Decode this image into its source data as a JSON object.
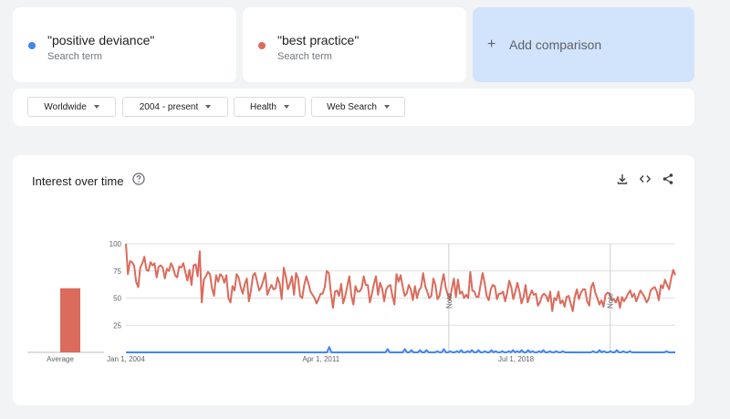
{
  "terms": [
    {
      "name": "\"positive deviance\"",
      "sub": "Search term",
      "color": "#4285f4"
    },
    {
      "name": "\"best practice\"",
      "sub": "Search term",
      "color": "#db4437"
    }
  ],
  "add_comparison": {
    "plus": "+",
    "label": "Add comparison"
  },
  "filters": [
    {
      "label": "Worldwide"
    },
    {
      "label": "2004 - present"
    },
    {
      "label": "Health"
    },
    {
      "label": "Web Search"
    }
  ],
  "chart_panel": {
    "title": "Interest over time",
    "icons": [
      "help-icon",
      "download-icon",
      "embed-icon",
      "share-icon"
    ]
  },
  "chart_data": {
    "type": "line",
    "average": {
      "label": "Average",
      "bars": [
        {
          "term": "\"positive deviance\"",
          "value": 0
        },
        {
          "term": "\"best practice\"",
          "value": 59
        }
      ]
    },
    "y_ticks": [
      "100",
      "75",
      "50",
      "25"
    ],
    "ylim": [
      0,
      100
    ],
    "x_ticks": [
      "Jan 1, 2004",
      "Apr 1, 2011",
      "Jul 1, 2018"
    ],
    "note_markers": [
      {
        "label": "Note",
        "date": "2016-01-01"
      },
      {
        "label": "Note",
        "date": "2022-01-01"
      }
    ],
    "x_start": "2004-01",
    "x_end": "2024-06",
    "series": [
      {
        "name": "\"best practice\"",
        "color": "#db6b5c",
        "sampling": "monthly",
        "values": [
          100,
          72,
          84,
          83,
          80,
          65,
          60,
          78,
          82,
          88,
          76,
          75,
          83,
          80,
          82,
          69,
          79,
          80,
          78,
          68,
          77,
          75,
          82,
          78,
          71,
          69,
          79,
          78,
          82,
          74,
          66,
          76,
          62,
          80,
          81,
          70,
          93,
          46,
          67,
          70,
          74,
          72,
          59,
          52,
          71,
          65,
          72,
          70,
          64,
          71,
          50,
          46,
          61,
          57,
          72,
          69,
          60,
          54,
          63,
          68,
          47,
          57,
          71,
          73,
          65,
          57,
          60,
          66,
          73,
          53,
          58,
          62,
          58,
          59,
          69,
          63,
          49,
          78,
          70,
          58,
          63,
          70,
          53,
          73,
          68,
          52,
          50,
          62,
          70,
          64,
          56,
          53,
          50,
          45,
          49,
          54,
          54,
          60,
          75,
          73,
          55,
          41,
          56,
          57,
          52,
          63,
          45,
          52,
          61,
          70,
          52,
          44,
          61,
          56,
          56,
          59,
          70,
          62,
          62,
          46,
          54,
          63,
          70,
          53,
          64,
          59,
          47,
          58,
          61,
          62,
          52,
          44,
          72,
          65,
          71,
          61,
          52,
          54,
          62,
          58,
          48,
          61,
          50,
          57,
          60,
          73,
          61,
          56,
          50,
          52,
          68,
          62,
          49,
          52,
          63,
          72,
          60,
          53,
          48,
          59,
          68,
          51,
          67,
          54,
          56,
          50,
          53,
          50,
          74,
          57,
          56,
          51,
          51,
          62,
          73,
          64,
          52,
          48,
          58,
          62,
          61,
          49,
          54,
          54,
          56,
          47,
          55,
          66,
          60,
          49,
          56,
          64,
          56,
          45,
          51,
          62,
          46,
          52,
          57,
          53,
          54,
          43,
          46,
          52,
          54,
          52,
          47,
          56,
          38,
          50,
          48,
          56,
          45,
          48,
          42,
          51,
          52,
          45,
          38,
          51,
          58,
          49,
          55,
          58,
          58,
          47,
          43,
          60,
          64,
          55,
          50,
          44,
          48,
          42,
          53,
          55,
          54,
          48,
          49,
          46,
          51,
          41,
          51,
          47,
          50,
          54,
          57,
          51,
          54,
          47,
          52,
          57,
          54,
          51,
          46,
          49,
          57,
          59,
          60,
          56,
          48,
          62,
          59,
          67,
          62,
          58,
          68,
          76,
          71
        ]
      },
      {
        "name": "\"positive deviance\"",
        "color": "#4285f4",
        "sampling": "monthly",
        "values": [
          0,
          0,
          0,
          0,
          0,
          0,
          0,
          0,
          0,
          0,
          0,
          0,
          0,
          0,
          0,
          0,
          0,
          0,
          0,
          0,
          0,
          0,
          0,
          0,
          0,
          0,
          0,
          0,
          0,
          0,
          0,
          0,
          0,
          0,
          0,
          0,
          0,
          0,
          0,
          0,
          0,
          0,
          0,
          0,
          0,
          0,
          0,
          0,
          0,
          0,
          0,
          0,
          0,
          0,
          0,
          0,
          0,
          0,
          0,
          0,
          0,
          0,
          0,
          0,
          0,
          0,
          0,
          0,
          0,
          0,
          0,
          0,
          0,
          0,
          0,
          0,
          0,
          0,
          0,
          0,
          0,
          0,
          0,
          0,
          0,
          0,
          0,
          0,
          0,
          0,
          0,
          0,
          0,
          0,
          5,
          0,
          0,
          0,
          0,
          0,
          0,
          0,
          0,
          0,
          0,
          0,
          0,
          0,
          0,
          0,
          0,
          0,
          0,
          0,
          0,
          0,
          0,
          0,
          0,
          0,
          0,
          3,
          0,
          0,
          0,
          0,
          0,
          0,
          0,
          3,
          0,
          0,
          2,
          0,
          0,
          0,
          2,
          0,
          0,
          2,
          0,
          0,
          0,
          0,
          1,
          0,
          0,
          3,
          0,
          0,
          1,
          0,
          0,
          1,
          0,
          2,
          0,
          0,
          1,
          0,
          2,
          0,
          0,
          2,
          0,
          0,
          1,
          0,
          0,
          2,
          0,
          1,
          0,
          0,
          1,
          0,
          0,
          1,
          0,
          2,
          0,
          1,
          0,
          2,
          0,
          0,
          2,
          0,
          1,
          0,
          0,
          1,
          0,
          2,
          0,
          0,
          1,
          0,
          0,
          1,
          0,
          0,
          1,
          0,
          0,
          0,
          0,
          0,
          0,
          0,
          0,
          0,
          0,
          0,
          0,
          0,
          1,
          0,
          0,
          2,
          0,
          1,
          0,
          0,
          1,
          0,
          0,
          2,
          0,
          0,
          1,
          0,
          0,
          1,
          0,
          0,
          0,
          0,
          0,
          0,
          0,
          0,
          0,
          0,
          0,
          0,
          0,
          0,
          0,
          0,
          1,
          0,
          0,
          0,
          0
        ]
      }
    ]
  }
}
